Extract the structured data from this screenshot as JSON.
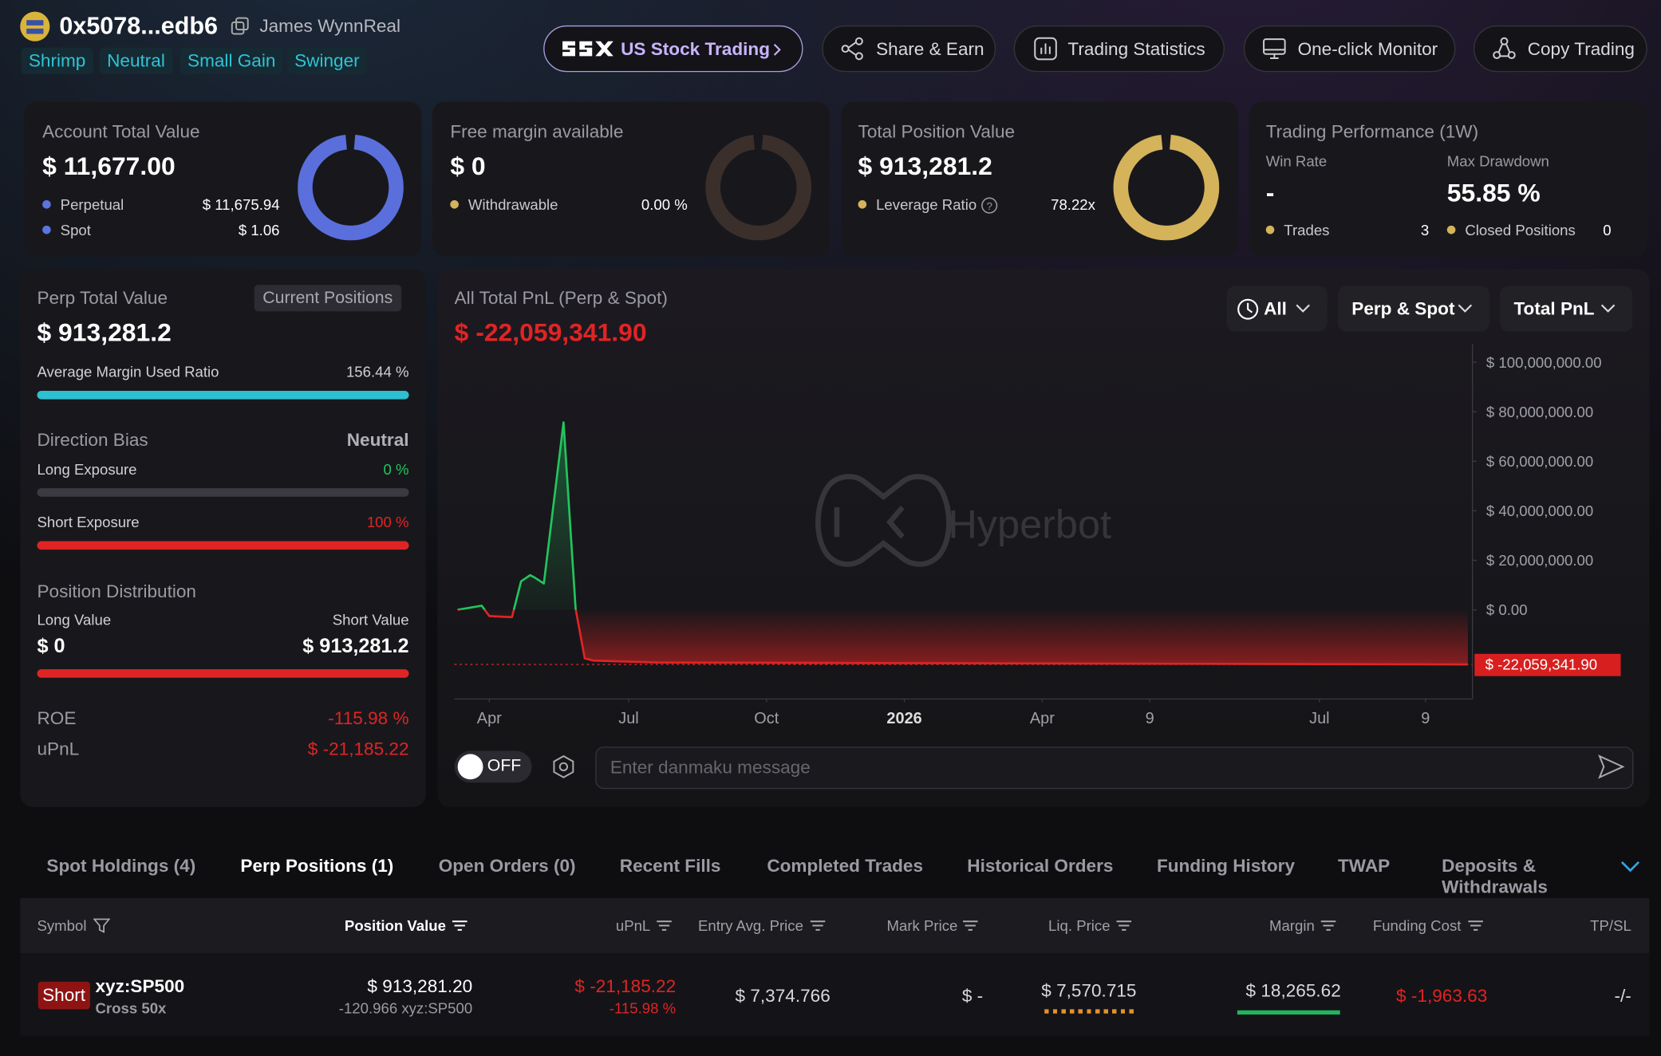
{
  "header": {
    "address": "0x5078...edb6",
    "name": "James WynnReal",
    "tags": [
      "Shrimp",
      "Neutral",
      "Small Gain",
      "Swinger"
    ],
    "buttons": [
      "US Stock Trading",
      "Share & Earn",
      "Trading Statistics",
      "One-click Monitor",
      "Copy Trading"
    ]
  },
  "cards": [
    {
      "title": "Account Total Value",
      "value": "$ 11,677.00",
      "rows": [
        {
          "label": "Perpetual",
          "value": "$ 11,675.94"
        },
        {
          "label": "Spot",
          "value": "$ 1.06"
        }
      ]
    },
    {
      "title": "Free margin available",
      "value": "$ 0",
      "rows": [
        {
          "label": "Withdrawable",
          "value": "0.00 %"
        }
      ]
    },
    {
      "title": "Total Position Value",
      "value": "$ 913,281.2",
      "rows": [
        {
          "label": "Leverage Ratio",
          "value": "78.22x"
        }
      ]
    },
    {
      "title": "Trading Performance (1W)",
      "stats": [
        {
          "label": "Win Rate",
          "value": "-"
        },
        {
          "label": "Max Drawdown",
          "value": "55.85 %"
        }
      ],
      "rows": [
        {
          "label": "Trades",
          "value": "3"
        },
        {
          "label": "Closed Positions",
          "value": "0"
        }
      ]
    }
  ],
  "perp": {
    "title": "Perp Total Value",
    "badge": "Current Positions",
    "value": "$ 913,281.2",
    "margin": {
      "label": "Average Margin Used Ratio",
      "value": "156.44 %"
    },
    "bias": {
      "label": "Direction Bias",
      "value": "Neutral"
    },
    "long": {
      "label": "Long Exposure",
      "value": "0 %"
    },
    "short": {
      "label": "Short Exposure",
      "value": "100 %"
    },
    "distribution": {
      "title": "Position Distribution",
      "long_label": "Long Value",
      "long_value": "$ 0",
      "short_label": "Short Value",
      "short_value": "$ 913,281.2"
    },
    "roe": {
      "label": "ROE",
      "value": "-115.98 %"
    },
    "upnl": {
      "label": "uPnL",
      "value": "$ -21,185.22"
    }
  },
  "pnl_chart": {
    "type": "line",
    "title": "All Total PnL (Perp & Spot)",
    "total": "$ -22,059,341.90",
    "filters": [
      "All",
      "Perp & Spot",
      "Total PnL"
    ],
    "watermark": "Hyperbot",
    "x": [
      2,
      18,
      23,
      38,
      44,
      50,
      53,
      59,
      72,
      80,
      86,
      92,
      134,
      669
    ],
    "values": [
      0,
      1700000,
      -2500000,
      -3000000,
      11500000,
      14000000,
      13000000,
      10600000,
      75700000,
      400000,
      -19600000,
      -20500000,
      -21300000,
      -22059341.9
    ],
    "value_labels": [
      null,
      null,
      null,
      null,
      null,
      null,
      null,
      null,
      null,
      null,
      null,
      null,
      null,
      "$ -22,059,341.90"
    ],
    "xlim": [
      0,
      672
    ],
    "ylim": [
      -36000000,
      103000000
    ],
    "xticks": [
      {
        "value": 23,
        "label": "Apr"
      },
      {
        "value": 115,
        "label": "Jul"
      },
      {
        "value": 206,
        "label": "Oct"
      },
      {
        "value": 297,
        "label": "2026"
      },
      {
        "value": 388,
        "label": "Apr"
      },
      {
        "value": 459,
        "label": "9"
      },
      {
        "value": 571,
        "label": "Jul"
      },
      {
        "value": 641,
        "label": "9"
      }
    ],
    "yticks": [
      {
        "value": 100000000,
        "label": "$ 100,000,000.00"
      },
      {
        "value": 80000000,
        "label": "$ 80,000,000.00"
      },
      {
        "value": 60000000,
        "label": "$ 60,000,000.00"
      },
      {
        "value": 40000000,
        "label": "$ 40,000,000.00"
      },
      {
        "value": 20000000,
        "label": "$ 20,000,000.00"
      },
      {
        "value": 0,
        "label": "$ 0.00"
      }
    ],
    "toggle": "OFF",
    "input_placeholder": "Enter danmaku message"
  },
  "tabs": [
    "Spot Holdings (4)",
    "Perp Positions (1)",
    "Open Orders (0)",
    "Recent Fills",
    "Completed Trades",
    "Historical Orders",
    "Funding History",
    "TWAP",
    "Deposits & Withdrawals"
  ],
  "table": {
    "columns": [
      "Symbol",
      "Position Value",
      "uPnL",
      "Entry Avg. Price",
      "Mark Price",
      "Liq. Price",
      "Margin",
      "Funding Cost",
      "TP/SL"
    ],
    "rows": [
      {
        "side": "Short",
        "symbol": "xyz:SP500",
        "mode": "Cross 50x",
        "position_value": "$ 913,281.20",
        "size": "-120.966 xyz:SP500",
        "upnl": "$ -21,185.22",
        "upnl_pct": "-115.98 %",
        "entry": "$ 7,374.766",
        "mark": "$ -",
        "liq": "$ 7,570.715",
        "margin": "$ 18,265.62",
        "funding": "$ -1,963.63",
        "tpsl": "-/-"
      }
    ]
  }
}
